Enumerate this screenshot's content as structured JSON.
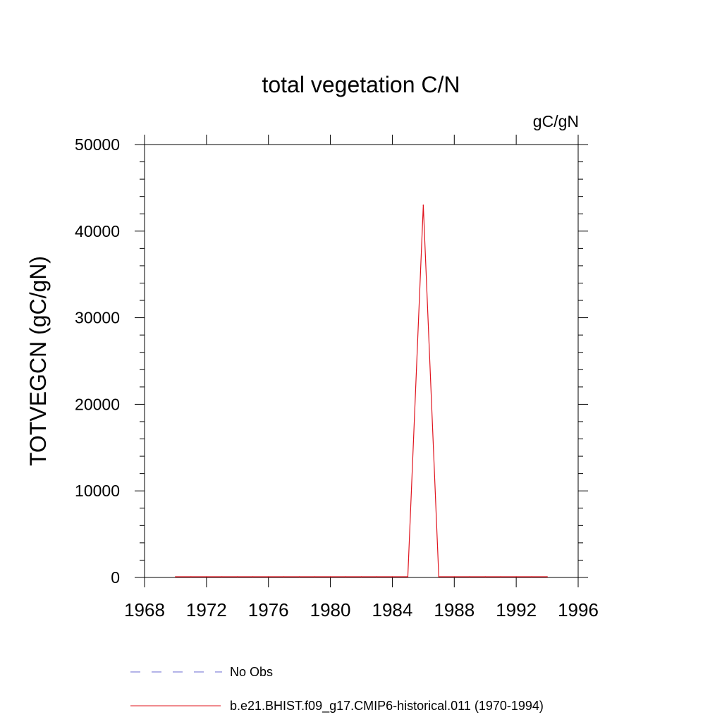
{
  "chart_data": {
    "type": "line",
    "title": "total vegetation C/N",
    "units_label": "gC/gN",
    "ylabel": "TOTVEGCN  (gC/gN)",
    "xlabel": "",
    "xlim": [
      1968,
      1996
    ],
    "ylim": [
      0,
      50000
    ],
    "x_ticks": [
      1968,
      1972,
      1976,
      1980,
      1984,
      1988,
      1992,
      1996
    ],
    "x_tick_labels": [
      "1968",
      "1972",
      "1976",
      "1980",
      "1984",
      "1988",
      "1992",
      "1996"
    ],
    "y_ticks": [
      0,
      10000,
      20000,
      30000,
      40000,
      50000
    ],
    "y_tick_labels": [
      "0",
      "10000",
      "20000",
      "30000",
      "40000",
      "50000"
    ],
    "grid": false,
    "legend_placement": "bottom",
    "series": [
      {
        "name": "No Obs",
        "color": "#6a6ad0",
        "style": "dashed",
        "x": [],
        "y": []
      },
      {
        "name": "b.e21.BHIST.f09_g17.CMIP6-historical.011 (1970-1994)",
        "color": "#e0141e",
        "style": "solid",
        "x": [
          1970,
          1971,
          1972,
          1973,
          1974,
          1975,
          1976,
          1977,
          1978,
          1979,
          1980,
          1981,
          1982,
          1983,
          1984,
          1985,
          1986,
          1987,
          1988,
          1989,
          1990,
          1991,
          1992,
          1993,
          1994
        ],
        "y": [
          80,
          80,
          80,
          80,
          80,
          80,
          80,
          80,
          80,
          80,
          80,
          80,
          80,
          80,
          80,
          80,
          43000,
          80,
          80,
          80,
          80,
          80,
          80,
          80,
          80
        ]
      }
    ]
  }
}
